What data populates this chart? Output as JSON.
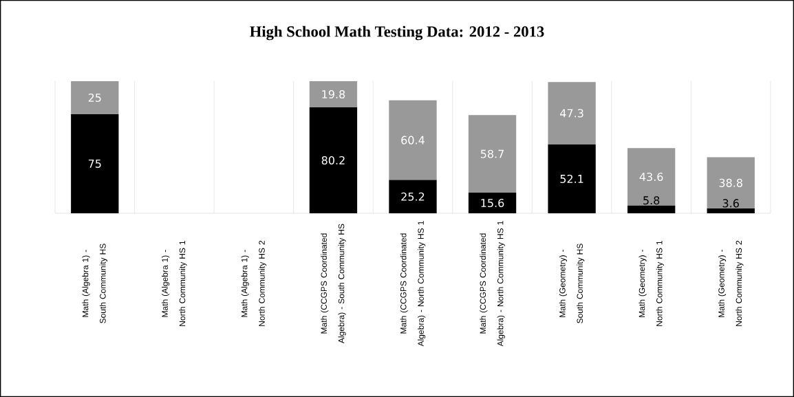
{
  "chart_data": {
    "type": "bar",
    "title": "High School Math Testing Data: 2012 - 2013",
    "categories": [
      "Math (Algebra 1) - South Community HS",
      "Math (Algebra 1) -North Community HS 1",
      "Math (Algebra 1) -North Community HS 2",
      "Math (CCGPS Coordinated Algebra) - South Community HS",
      "Math (CCGPS Coordinated Algebra) - North Community HS 1",
      "Math (CCGPS Coordinated Algebra) - North Community HS 1",
      "Math (Geometry) - South Community HS",
      "Math (Geometry) - North Community HS 1",
      "Math (Geometry) - North Community HS 2"
    ],
    "stacked": true,
    "series": [
      {
        "color": "#000000",
        "values": [
          75,
          null,
          null,
          80.2,
          25.2,
          15.6,
          52.1,
          5.8,
          3.6
        ]
      },
      {
        "color": "#999999",
        "values": [
          25,
          null,
          null,
          19.8,
          60.4,
          58.7,
          47.3,
          43.6,
          38.8
        ]
      }
    ],
    "data_labels": true,
    "grid": "x"
  }
}
